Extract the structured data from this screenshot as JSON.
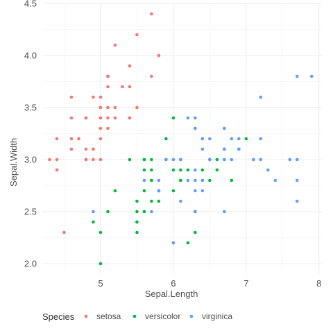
{
  "chart_data": {
    "type": "scatter",
    "xlabel": "Sepal.Length",
    "ylabel": "Sepal.Width",
    "xlim": [
      4.2,
      8.05
    ],
    "ylim": [
      1.9,
      4.5
    ],
    "x_ticks": [
      5,
      6,
      7,
      8
    ],
    "y_ticks": [
      2.0,
      2.5,
      3.0,
      3.5,
      4.0,
      4.5
    ],
    "x_tick_labels": [
      "5",
      "6",
      "7",
      "8"
    ],
    "y_tick_labels": [
      "2.0",
      "2.5",
      "3.0",
      "3.5",
      "4.0",
      "4.5"
    ],
    "grid": true,
    "legend": {
      "title": "Species",
      "placement": "bottom"
    },
    "series": [
      {
        "name": "setosa",
        "color": "#F8766D",
        "points": [
          [
            5.1,
            3.5
          ],
          [
            4.9,
            3.0
          ],
          [
            4.7,
            3.2
          ],
          [
            4.6,
            3.1
          ],
          [
            5.0,
            3.6
          ],
          [
            5.4,
            3.9
          ],
          [
            4.6,
            3.4
          ],
          [
            5.0,
            3.4
          ],
          [
            4.4,
            2.9
          ],
          [
            4.9,
            3.1
          ],
          [
            5.4,
            3.7
          ],
          [
            4.8,
            3.4
          ],
          [
            4.8,
            3.0
          ],
          [
            4.3,
            3.0
          ],
          [
            5.8,
            4.0
          ],
          [
            5.7,
            4.4
          ],
          [
            5.4,
            3.9
          ],
          [
            5.1,
            3.5
          ],
          [
            5.7,
            3.8
          ],
          [
            5.1,
            3.8
          ],
          [
            5.4,
            3.4
          ],
          [
            5.1,
            3.7
          ],
          [
            4.6,
            3.6
          ],
          [
            5.1,
            3.3
          ],
          [
            4.8,
            3.4
          ],
          [
            5.0,
            3.0
          ],
          [
            5.0,
            3.4
          ],
          [
            5.2,
            3.5
          ],
          [
            5.2,
            3.4
          ],
          [
            4.7,
            3.2
          ],
          [
            4.8,
            3.1
          ],
          [
            5.4,
            3.4
          ],
          [
            5.2,
            4.1
          ],
          [
            5.5,
            4.2
          ],
          [
            4.9,
            3.1
          ],
          [
            5.0,
            3.2
          ],
          [
            5.5,
            3.5
          ],
          [
            4.9,
            3.6
          ],
          [
            4.4,
            3.0
          ],
          [
            5.1,
            3.4
          ],
          [
            5.0,
            3.5
          ],
          [
            4.5,
            2.3
          ],
          [
            4.4,
            3.2
          ],
          [
            5.0,
            3.5
          ],
          [
            5.1,
            3.8
          ],
          [
            4.8,
            3.0
          ],
          [
            5.1,
            3.8
          ],
          [
            4.6,
            3.2
          ],
          [
            5.3,
            3.7
          ],
          [
            5.0,
            3.3
          ]
        ]
      },
      {
        "name": "versicolor",
        "color": "#00BA38",
        "points": [
          [
            7.0,
            3.2
          ],
          [
            6.4,
            3.2
          ],
          [
            6.9,
            3.1
          ],
          [
            5.5,
            2.3
          ],
          [
            6.5,
            2.8
          ],
          [
            5.7,
            2.8
          ],
          [
            6.3,
            3.3
          ],
          [
            4.9,
            2.4
          ],
          [
            6.6,
            2.9
          ],
          [
            5.2,
            2.7
          ],
          [
            5.0,
            2.0
          ],
          [
            5.9,
            3.0
          ],
          [
            6.0,
            2.2
          ],
          [
            6.1,
            2.9
          ],
          [
            5.6,
            2.9
          ],
          [
            6.7,
            3.1
          ],
          [
            5.6,
            3.0
          ],
          [
            5.8,
            2.7
          ],
          [
            6.2,
            2.2
          ],
          [
            5.6,
            2.5
          ],
          [
            5.9,
            3.2
          ],
          [
            6.1,
            2.8
          ],
          [
            6.3,
            2.5
          ],
          [
            6.1,
            2.8
          ],
          [
            6.4,
            2.9
          ],
          [
            6.6,
            3.0
          ],
          [
            6.8,
            2.8
          ],
          [
            6.7,
            3.0
          ],
          [
            6.0,
            2.9
          ],
          [
            5.7,
            2.6
          ],
          [
            5.5,
            2.4
          ],
          [
            5.5,
            2.4
          ],
          [
            5.8,
            2.7
          ],
          [
            6.0,
            2.7
          ],
          [
            5.4,
            3.0
          ],
          [
            6.0,
            3.4
          ],
          [
            6.7,
            3.1
          ],
          [
            6.3,
            2.3
          ],
          [
            5.6,
            3.0
          ],
          [
            5.5,
            2.5
          ],
          [
            5.5,
            2.6
          ],
          [
            6.1,
            3.0
          ],
          [
            5.8,
            2.6
          ],
          [
            5.0,
            2.3
          ],
          [
            5.6,
            2.7
          ],
          [
            5.7,
            3.0
          ],
          [
            5.7,
            2.9
          ],
          [
            6.2,
            2.9
          ],
          [
            5.1,
            2.5
          ],
          [
            5.7,
            2.8
          ]
        ]
      },
      {
        "name": "virginica",
        "color": "#619CFF",
        "points": [
          [
            6.3,
            3.3
          ],
          [
            5.8,
            2.7
          ],
          [
            7.1,
            3.0
          ],
          [
            6.3,
            2.9
          ],
          [
            6.5,
            3.0
          ],
          [
            7.6,
            3.0
          ],
          [
            4.9,
            2.5
          ],
          [
            7.3,
            2.9
          ],
          [
            6.7,
            2.5
          ],
          [
            7.2,
            3.6
          ],
          [
            6.5,
            3.2
          ],
          [
            6.4,
            2.7
          ],
          [
            6.8,
            3.0
          ],
          [
            5.7,
            2.5
          ],
          [
            5.8,
            2.8
          ],
          [
            6.4,
            3.2
          ],
          [
            6.5,
            3.0
          ],
          [
            7.7,
            3.8
          ],
          [
            7.7,
            2.6
          ],
          [
            6.0,
            2.2
          ],
          [
            6.9,
            3.2
          ],
          [
            5.6,
            2.8
          ],
          [
            7.7,
            2.8
          ],
          [
            6.3,
            2.7
          ],
          [
            6.7,
            3.3
          ],
          [
            7.2,
            3.2
          ],
          [
            6.2,
            2.8
          ],
          [
            6.1,
            3.0
          ],
          [
            6.4,
            2.8
          ],
          [
            7.2,
            3.0
          ],
          [
            7.4,
            2.8
          ],
          [
            7.9,
            3.8
          ],
          [
            6.4,
            2.8
          ],
          [
            6.3,
            2.8
          ],
          [
            6.1,
            2.6
          ],
          [
            7.7,
            3.0
          ],
          [
            6.3,
            3.4
          ],
          [
            6.4,
            3.1
          ],
          [
            6.0,
            3.0
          ],
          [
            6.9,
            3.1
          ],
          [
            6.7,
            3.1
          ],
          [
            6.9,
            3.1
          ],
          [
            5.8,
            2.7
          ],
          [
            6.8,
            3.2
          ],
          [
            6.7,
            3.3
          ],
          [
            6.7,
            3.0
          ],
          [
            6.3,
            2.5
          ],
          [
            6.5,
            3.0
          ],
          [
            6.2,
            3.4
          ],
          [
            5.9,
            3.0
          ]
        ]
      }
    ]
  }
}
